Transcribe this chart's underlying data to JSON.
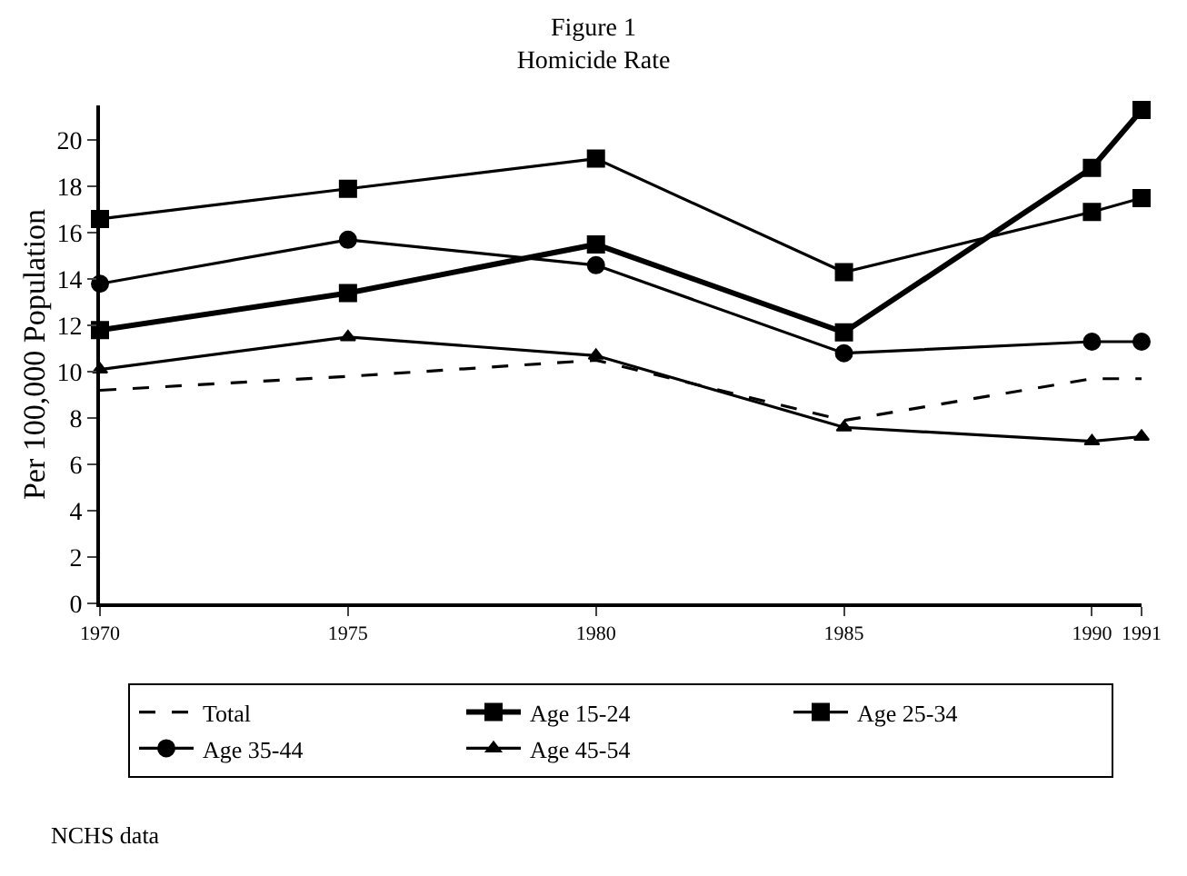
{
  "chart_data": {
    "type": "line",
    "title": "Figure 1",
    "subtitle": "Homicide Rate",
    "ylabel": "Per 100,000 Population",
    "x": [
      1970,
      1975,
      1980,
      1985,
      1990,
      1991
    ],
    "xlim": [
      1970,
      1991
    ],
    "xticks": [
      1970,
      1975,
      1980,
      1985,
      1990,
      1991
    ],
    "ylim": [
      0,
      21.5
    ],
    "yticks": [
      0,
      2,
      4,
      6,
      8,
      10,
      12,
      14,
      16,
      18,
      20
    ],
    "legend": "bottom",
    "series": [
      {
        "name": "Total",
        "color": "#000000",
        "line_style": "dashed",
        "marker": "none",
        "values": [
          9.2,
          9.8,
          10.5,
          7.9,
          9.7,
          9.7
        ]
      },
      {
        "name": "Age 15-24",
        "color": "#000000",
        "line_style": "solid",
        "marker": "square",
        "values": [
          11.8,
          13.4,
          15.5,
          11.7,
          18.8,
          21.3
        ]
      },
      {
        "name": "Age 25-34",
        "color": "#000000",
        "line_style": "solid",
        "marker": "square",
        "values": [
          16.6,
          17.9,
          19.2,
          14.3,
          16.9,
          17.5
        ]
      },
      {
        "name": "Age 35-44",
        "color": "#000000",
        "line_style": "solid",
        "marker": "circle",
        "values": [
          13.8,
          15.7,
          14.6,
          10.8,
          11.3,
          11.3
        ]
      },
      {
        "name": "Age 45-54",
        "color": "#000000",
        "line_style": "solid",
        "marker": "triangle",
        "values": [
          10.1,
          11.5,
          10.7,
          7.6,
          7.0,
          7.2
        ]
      }
    ],
    "annotations": [
      "NCHS data"
    ]
  }
}
